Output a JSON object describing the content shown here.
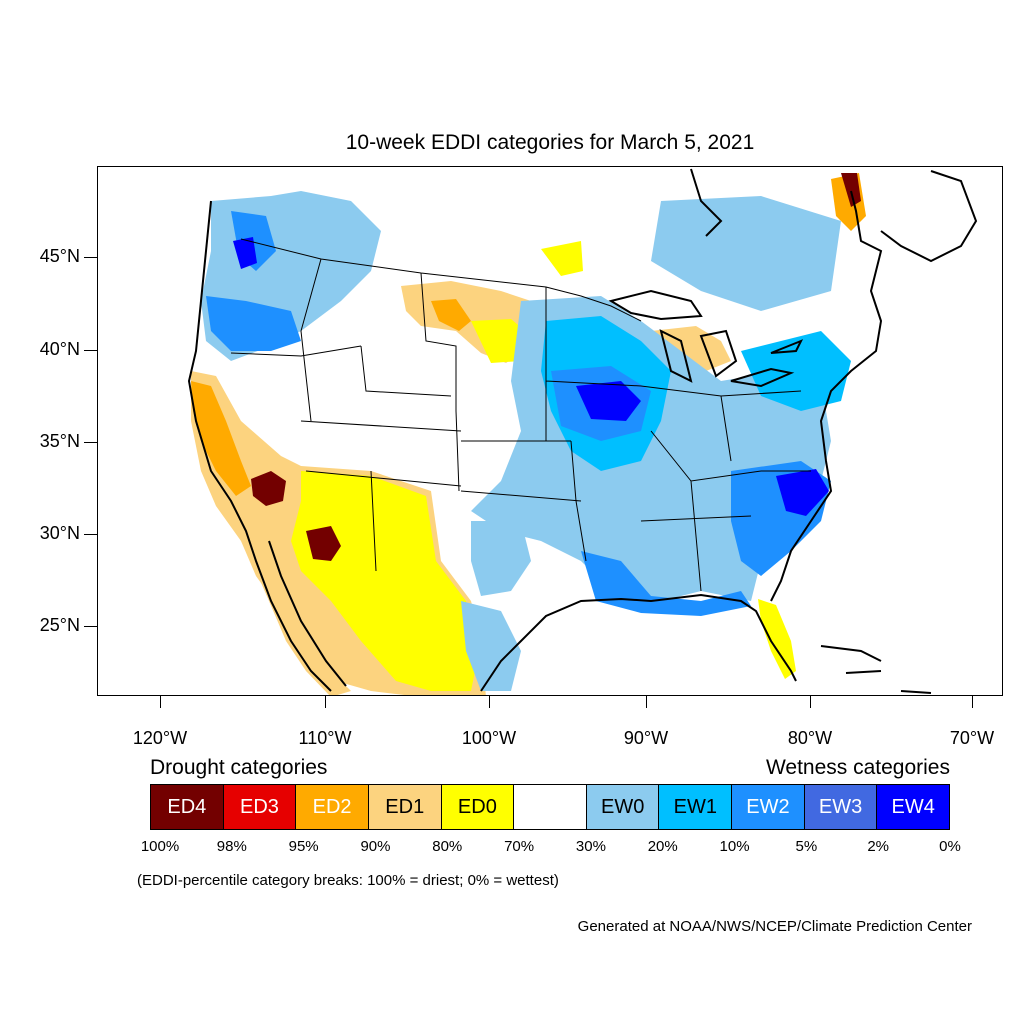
{
  "title": "10-week EDDI categories for March 5, 2021",
  "lat_labels": [
    "45°N",
    "40°N",
    "35°N",
    "30°N",
    "25°N"
  ],
  "lon_labels": [
    "120°W",
    "110°W",
    "100°W",
    "90°W",
    "80°W",
    "70°W"
  ],
  "legend": {
    "drought_heading": "Drought categories",
    "wetness_heading": "Wetness categories",
    "categories": [
      {
        "label": "ED4",
        "color": "#730000",
        "text_color": "#ffffff"
      },
      {
        "label": "ED3",
        "color": "#e60000",
        "text_color": "#ffffff"
      },
      {
        "label": "ED2",
        "color": "#ffaa00",
        "text_color": "#ffffff"
      },
      {
        "label": "ED1",
        "color": "#fcd37f",
        "text_color": "#000000"
      },
      {
        "label": "ED0",
        "color": "#ffff00",
        "text_color": "#000000"
      },
      {
        "label": "",
        "color": "#ffffff",
        "text_color": "#000000"
      },
      {
        "label": "EW0",
        "color": "#8ccbef",
        "text_color": "#000000"
      },
      {
        "label": "EW1",
        "color": "#00bfff",
        "text_color": "#000000"
      },
      {
        "label": "EW2",
        "color": "#1e90ff",
        "text_color": "#ffffff"
      },
      {
        "label": "EW3",
        "color": "#4169e1",
        "text_color": "#ffffff"
      },
      {
        "label": "EW4",
        "color": "#0000ff",
        "text_color": "#ffffff"
      }
    ],
    "breaks": [
      "100%",
      "98%",
      "95%",
      "90%",
      "80%",
      "70%",
      "30%",
      "20%",
      "10%",
      "5%",
      "2%",
      "0%"
    ],
    "note": "(EDDI-percentile category breaks: 100% = driest; 0% = wettest)"
  },
  "credit": "Generated at NOAA/NWS/NCEP/Climate Prediction Center"
}
